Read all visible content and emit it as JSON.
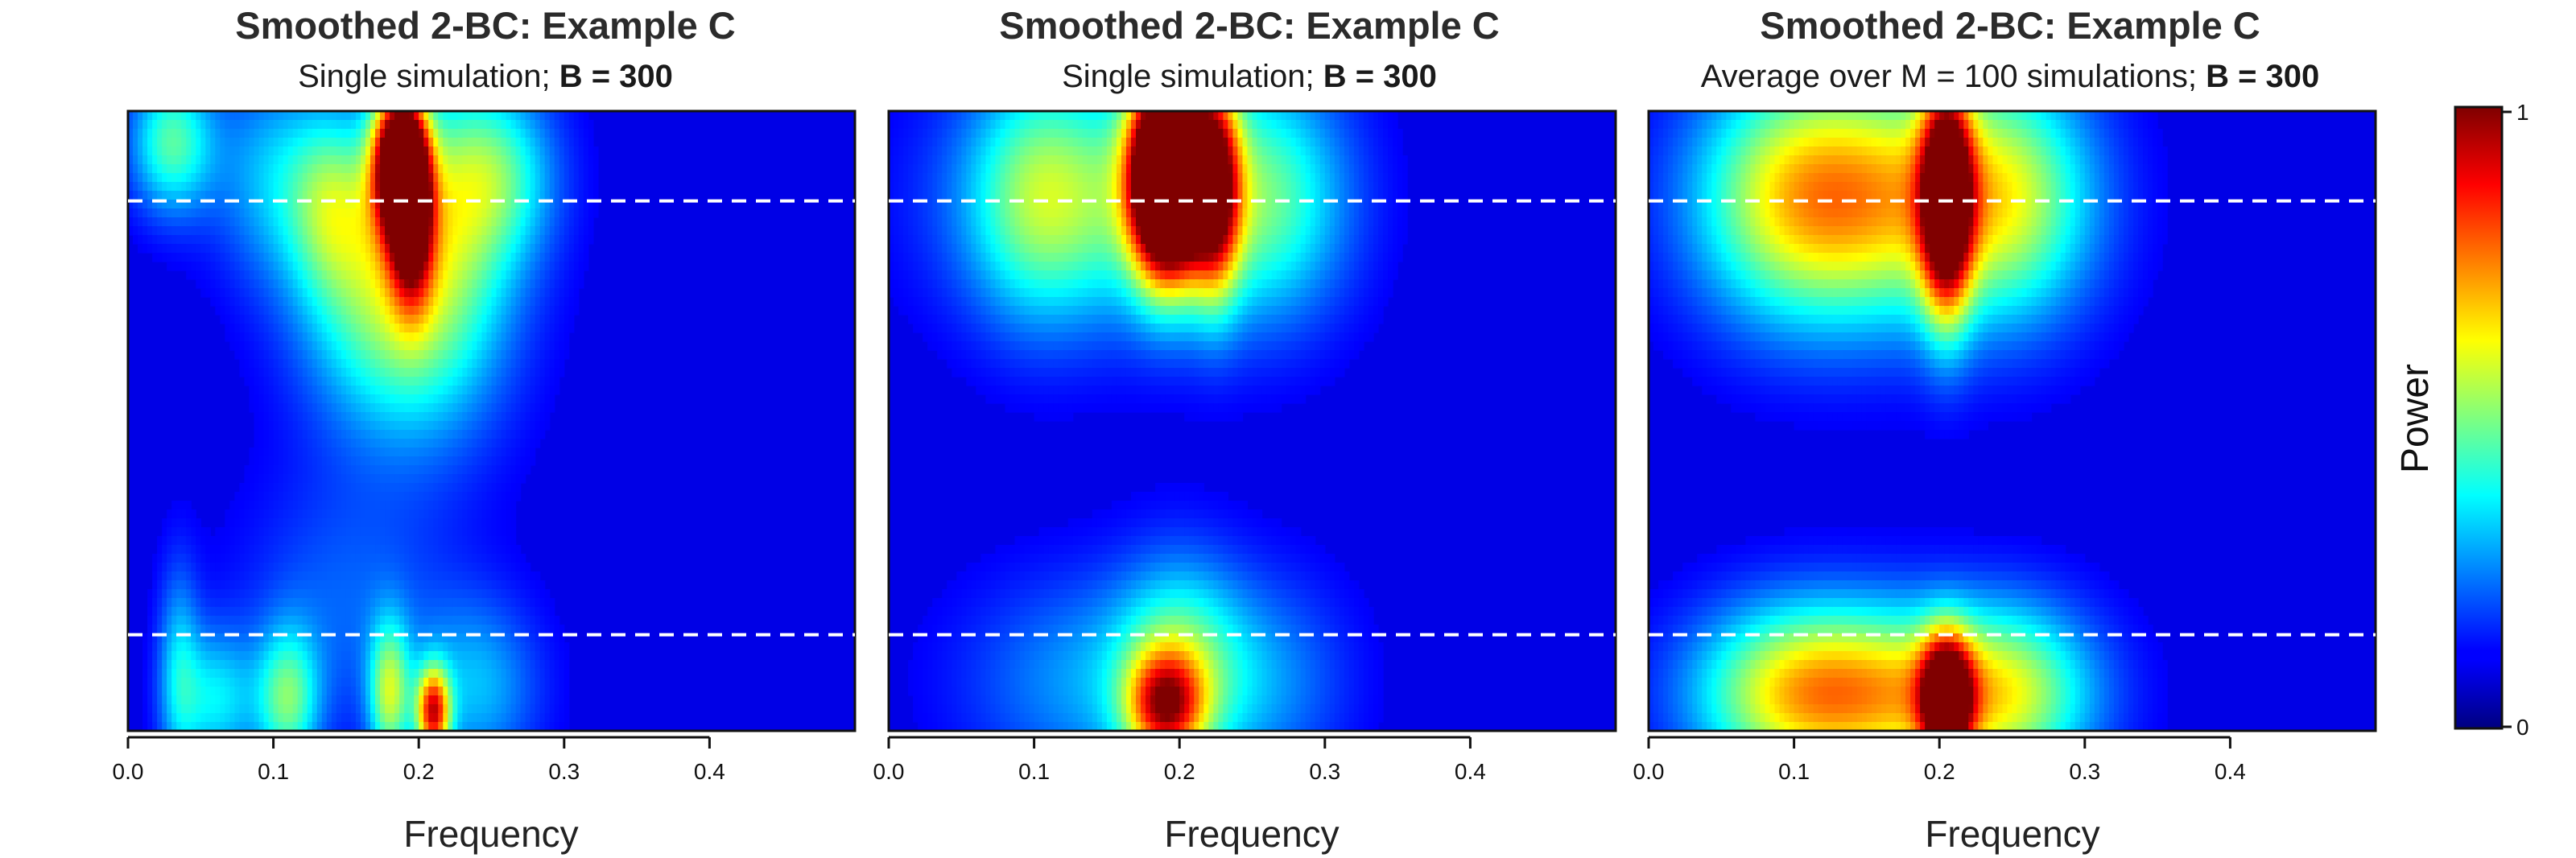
{
  "chart_data": [
    {
      "type": "heatmap",
      "title": "Smoothed 2-BC: Example C",
      "subtitle_prefix": "Single simulation; ",
      "subtitle_bold": "B = 300",
      "xlabel": "Frequency",
      "xlim": [
        0,
        0.5
      ],
      "xticks": [
        "0.0",
        "0.1",
        "0.2",
        "0.3",
        "0.4"
      ],
      "dashed_lines": [
        0.155,
        0.855
      ],
      "color_scale": "jet",
      "peaks": [
        {
          "freq": 0.185,
          "y_center": 0.92,
          "width": 0.012,
          "height": 0.08,
          "value": 1.0
        },
        {
          "freq": 0.195,
          "y_center": 0.85,
          "width": 0.01,
          "height": 0.1,
          "value": 0.85
        },
        {
          "freq": 0.21,
          "y_center": 0.75,
          "width": 0.04,
          "height": 0.18,
          "value": 0.45
        },
        {
          "freq": 0.17,
          "y_center": 0.7,
          "width": 0.04,
          "height": 0.15,
          "value": 0.35
        },
        {
          "freq": 0.03,
          "y_center": 0.95,
          "width": 0.02,
          "height": 0.08,
          "value": 0.45
        },
        {
          "freq": 0.25,
          "y_center": 0.9,
          "width": 0.03,
          "height": 0.1,
          "value": 0.4
        },
        {
          "freq": 0.1,
          "y_center": 0.9,
          "width": 0.03,
          "height": 0.12,
          "value": 0.3
        },
        {
          "freq": 0.14,
          "y_center": 0.85,
          "width": 0.02,
          "height": 0.1,
          "value": 0.35
        },
        {
          "freq": 0.21,
          "y_center": 0.03,
          "width": 0.008,
          "height": 0.05,
          "value": 0.8
        },
        {
          "freq": 0.18,
          "y_center": 0.06,
          "width": 0.01,
          "height": 0.08,
          "value": 0.5
        },
        {
          "freq": 0.11,
          "y_center": 0.05,
          "width": 0.015,
          "height": 0.08,
          "value": 0.45
        },
        {
          "freq": 0.06,
          "y_center": 0.05,
          "width": 0.02,
          "height": 0.08,
          "value": 0.35
        },
        {
          "freq": 0.15,
          "y_center": 0.2,
          "width": 0.05,
          "height": 0.15,
          "value": 0.22
        },
        {
          "freq": 0.24,
          "y_center": 0.07,
          "width": 0.03,
          "height": 0.1,
          "value": 0.3
        },
        {
          "freq": 0.035,
          "y_center": 0.1,
          "width": 0.01,
          "height": 0.12,
          "value": 0.3
        }
      ]
    },
    {
      "type": "heatmap",
      "title": "Smoothed 2-BC: Example C",
      "subtitle_prefix": "Single simulation; ",
      "subtitle_bold": "B = 300",
      "xlabel": "Frequency",
      "xlim": [
        0,
        0.5
      ],
      "xticks": [
        "0.0",
        "0.1",
        "0.2",
        "0.3",
        "0.4"
      ],
      "dashed_lines": [
        0.155,
        0.855
      ],
      "color_scale": "jet",
      "peaks": [
        {
          "freq": 0.185,
          "y_center": 0.9,
          "width": 0.015,
          "height": 0.11,
          "value": 1.0
        },
        {
          "freq": 0.2,
          "y_center": 0.9,
          "width": 0.015,
          "height": 0.11,
          "value": 0.9
        },
        {
          "freq": 0.225,
          "y_center": 0.88,
          "width": 0.012,
          "height": 0.12,
          "value": 0.75
        },
        {
          "freq": 0.15,
          "y_center": 0.86,
          "width": 0.07,
          "height": 0.14,
          "value": 0.45
        },
        {
          "freq": 0.26,
          "y_center": 0.86,
          "width": 0.04,
          "height": 0.14,
          "value": 0.4
        },
        {
          "freq": 0.1,
          "y_center": 0.86,
          "width": 0.03,
          "height": 0.14,
          "value": 0.3
        },
        {
          "freq": 0.19,
          "y_center": 0.04,
          "width": 0.018,
          "height": 0.06,
          "value": 0.65
        },
        {
          "freq": 0.2,
          "y_center": 0.1,
          "width": 0.03,
          "height": 0.12,
          "value": 0.4
        },
        {
          "freq": 0.14,
          "y_center": 0.08,
          "width": 0.06,
          "height": 0.12,
          "value": 0.28
        },
        {
          "freq": 0.26,
          "y_center": 0.08,
          "width": 0.04,
          "height": 0.12,
          "value": 0.25
        }
      ]
    },
    {
      "type": "heatmap",
      "title": "Smoothed 2-BC: Example C",
      "subtitle_prefix": "Average over M = 100 simulations; ",
      "subtitle_bold": "B = 300",
      "xlabel": "Frequency",
      "xlim": [
        0,
        0.5
      ],
      "xticks": [
        "0.0",
        "0.1",
        "0.2",
        "0.3",
        "0.4"
      ],
      "dashed_lines": [
        0.155,
        0.855
      ],
      "color_scale": "jet",
      "peaks": [
        {
          "freq": 0.205,
          "y_center": 0.86,
          "width": 0.012,
          "height": 0.13,
          "value": 0.95
        },
        {
          "freq": 0.205,
          "y_center": 0.05,
          "width": 0.012,
          "height": 0.07,
          "value": 0.95
        },
        {
          "freq": 0.17,
          "y_center": 0.86,
          "width": 0.07,
          "height": 0.14,
          "value": 0.55
        },
        {
          "freq": 0.17,
          "y_center": 0.06,
          "width": 0.07,
          "height": 0.1,
          "value": 0.55
        },
        {
          "freq": 0.1,
          "y_center": 0.86,
          "width": 0.05,
          "height": 0.14,
          "value": 0.45
        },
        {
          "freq": 0.1,
          "y_center": 0.06,
          "width": 0.05,
          "height": 0.1,
          "value": 0.45
        },
        {
          "freq": 0.25,
          "y_center": 0.86,
          "width": 0.04,
          "height": 0.14,
          "value": 0.4
        },
        {
          "freq": 0.25,
          "y_center": 0.06,
          "width": 0.04,
          "height": 0.1,
          "value": 0.4
        }
      ]
    }
  ],
  "colorbar": {
    "label": "Power",
    "min_label": "0",
    "max_label": "1"
  }
}
